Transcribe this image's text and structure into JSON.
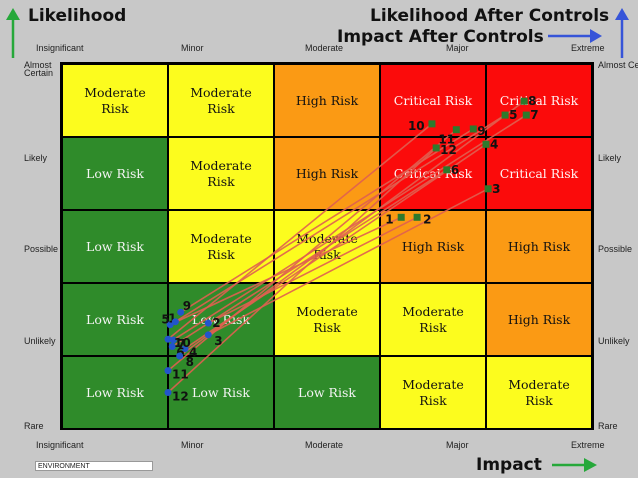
{
  "header": {
    "likelihood": "Likelihood",
    "likelihood_after": "Likelihood After Controls",
    "impact_after": "Impact After Controls",
    "impact": "Impact"
  },
  "footer": {
    "environment": "ENVIRONMENT"
  },
  "colors": {
    "green": "#2f8b2a",
    "yellow": "#fcfc1e",
    "orange": "#fb9a14",
    "red": "#fb0b0b",
    "arrow_green": "#26a83a",
    "arrow_blue": "#3654d8",
    "before_marker": "#2d7a2d",
    "after_marker": "#2255cc",
    "link_line": "#e06050"
  },
  "chart_data": {
    "type": "risk-matrix",
    "x_axis": {
      "ticks_bottom": [
        "Insignificant",
        "Minor",
        "Moderate",
        "Major",
        "Extreme"
      ],
      "ticks_top": [
        "Insignificant",
        "Minor",
        "Moderate",
        "Major",
        "Extreme"
      ]
    },
    "y_axis": {
      "ticks_left": [
        "Almost Certain",
        "Likely",
        "Possible",
        "Unlikely",
        "Rare"
      ],
      "ticks_right": [
        "Almost Certain",
        "Likely",
        "Possible",
        "Unlikely",
        "Rare"
      ]
    },
    "grid": [
      [
        "Moderate Risk",
        "Moderate Risk",
        "High Risk",
        "Critical Risk",
        "Critical Risk"
      ],
      [
        "Low Risk",
        "Moderate Risk",
        "High Risk",
        "Critical Risk",
        "Critical Risk"
      ],
      [
        "Low Risk",
        "Moderate Risk",
        "Moderate Risk",
        "High Risk",
        "High Risk"
      ],
      [
        "Low Risk",
        "Low Risk",
        "Moderate Risk",
        "Moderate Risk",
        "High Risk"
      ],
      [
        "Low Risk",
        "Low Risk",
        "Low Risk",
        "Moderate Risk",
        "Moderate Risk"
      ]
    ],
    "risks": [
      {
        "label": "1",
        "before": [
          3.7,
          3.4
        ],
        "after": [
          1.52,
          1.93
        ]
      },
      {
        "label": "2",
        "before": [
          3.85,
          3.4
        ],
        "after": [
          1.88,
          1.95
        ]
      },
      {
        "label": "3",
        "before": [
          4.52,
          3.79
        ],
        "after": [
          1.88,
          1.79
        ]
      },
      {
        "label": "4",
        "before": [
          4.5,
          4.4
        ],
        "after": [
          1.66,
          1.6
        ]
      },
      {
        "label": "5",
        "before": [
          4.68,
          4.8
        ],
        "after": [
          1.57,
          1.97
        ]
      },
      {
        "label": "6",
        "before": [
          4.13,
          4.05
        ],
        "after": [
          1.54,
          1.63
        ]
      },
      {
        "label": "7",
        "before": [
          4.88,
          4.8
        ],
        "after": [
          1.55,
          1.72
        ]
      },
      {
        "label": "8",
        "before": [
          4.86,
          4.99
        ],
        "after": [
          1.61,
          1.5
        ]
      },
      {
        "label": "9",
        "before": [
          4.38,
          4.61
        ],
        "after": [
          1.62,
          2.1
        ]
      },
      {
        "label": "10",
        "before": [
          3.99,
          4.68
        ],
        "after": [
          1.5,
          1.73
        ]
      },
      {
        "label": "11",
        "before": [
          4.22,
          4.6
        ],
        "after": [
          1.5,
          1.3
        ]
      },
      {
        "label": "12",
        "before": [
          4.03,
          4.35
        ],
        "after": [
          1.5,
          1.0
        ]
      }
    ]
  }
}
